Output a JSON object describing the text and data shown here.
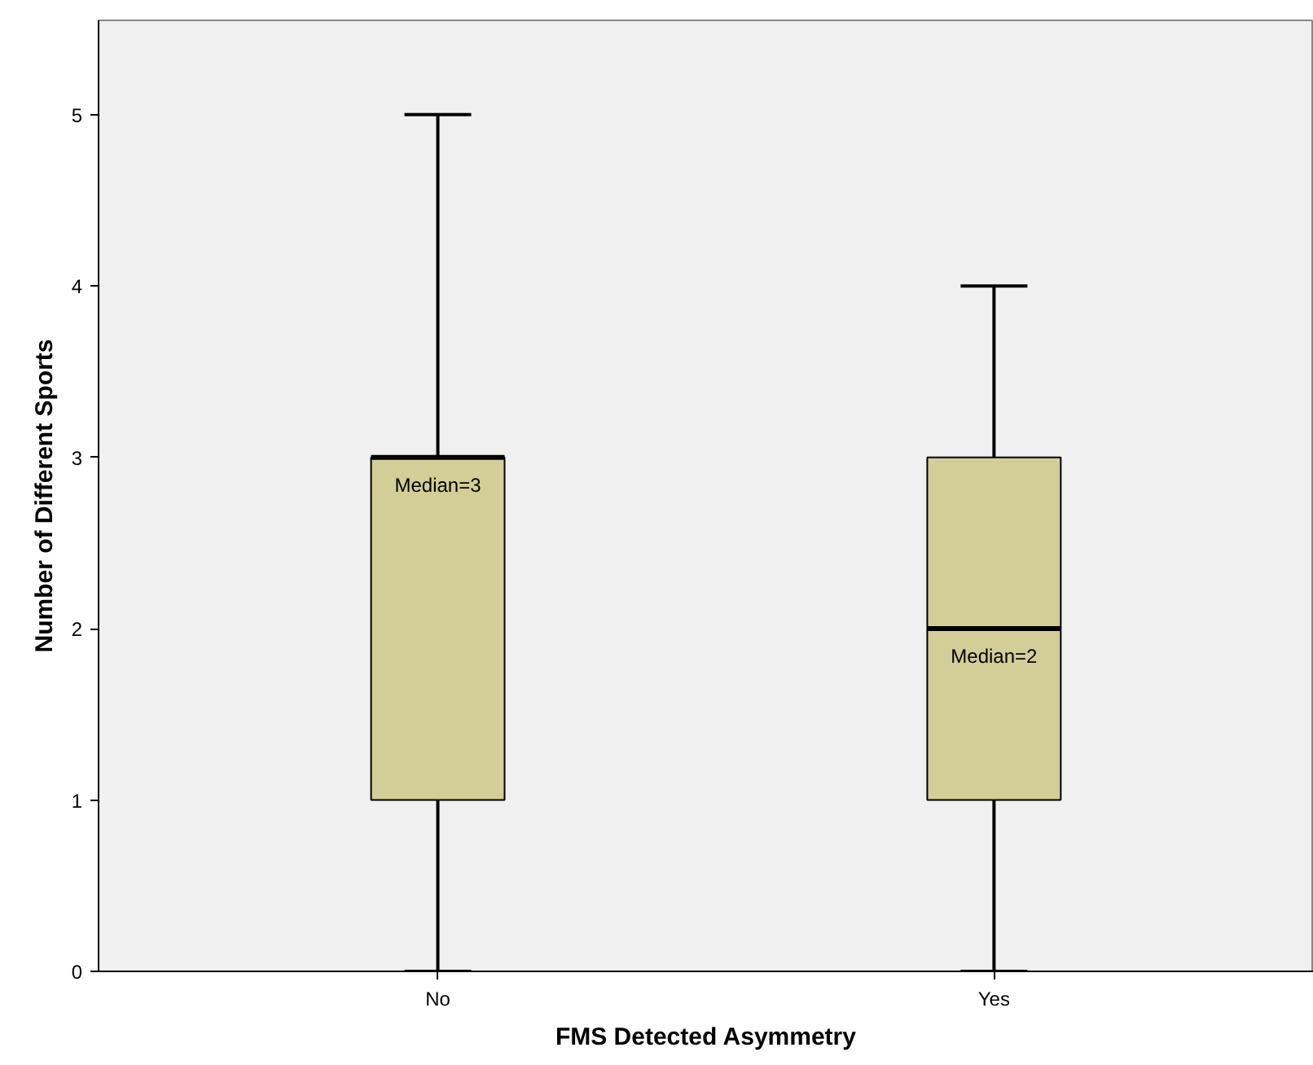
{
  "chart_data": {
    "type": "box",
    "xlabel": "FMS Detected Asymmetry",
    "ylabel": "Number of Different Sports",
    "categories": [
      "No",
      "Yes"
    ],
    "boxes": [
      {
        "low": 0,
        "q1": 1,
        "median": 3,
        "q3": 3,
        "high": 5
      },
      {
        "low": 0,
        "q1": 1,
        "median": 2,
        "q3": 3,
        "high": 4
      }
    ],
    "color": "#d3cd98",
    "ylim": [
      0,
      5.55
    ],
    "yticks": [
      0,
      1,
      2,
      3,
      4,
      5
    ],
    "grid": false,
    "annotations": [
      "Median=3",
      "Median=2"
    ]
  }
}
